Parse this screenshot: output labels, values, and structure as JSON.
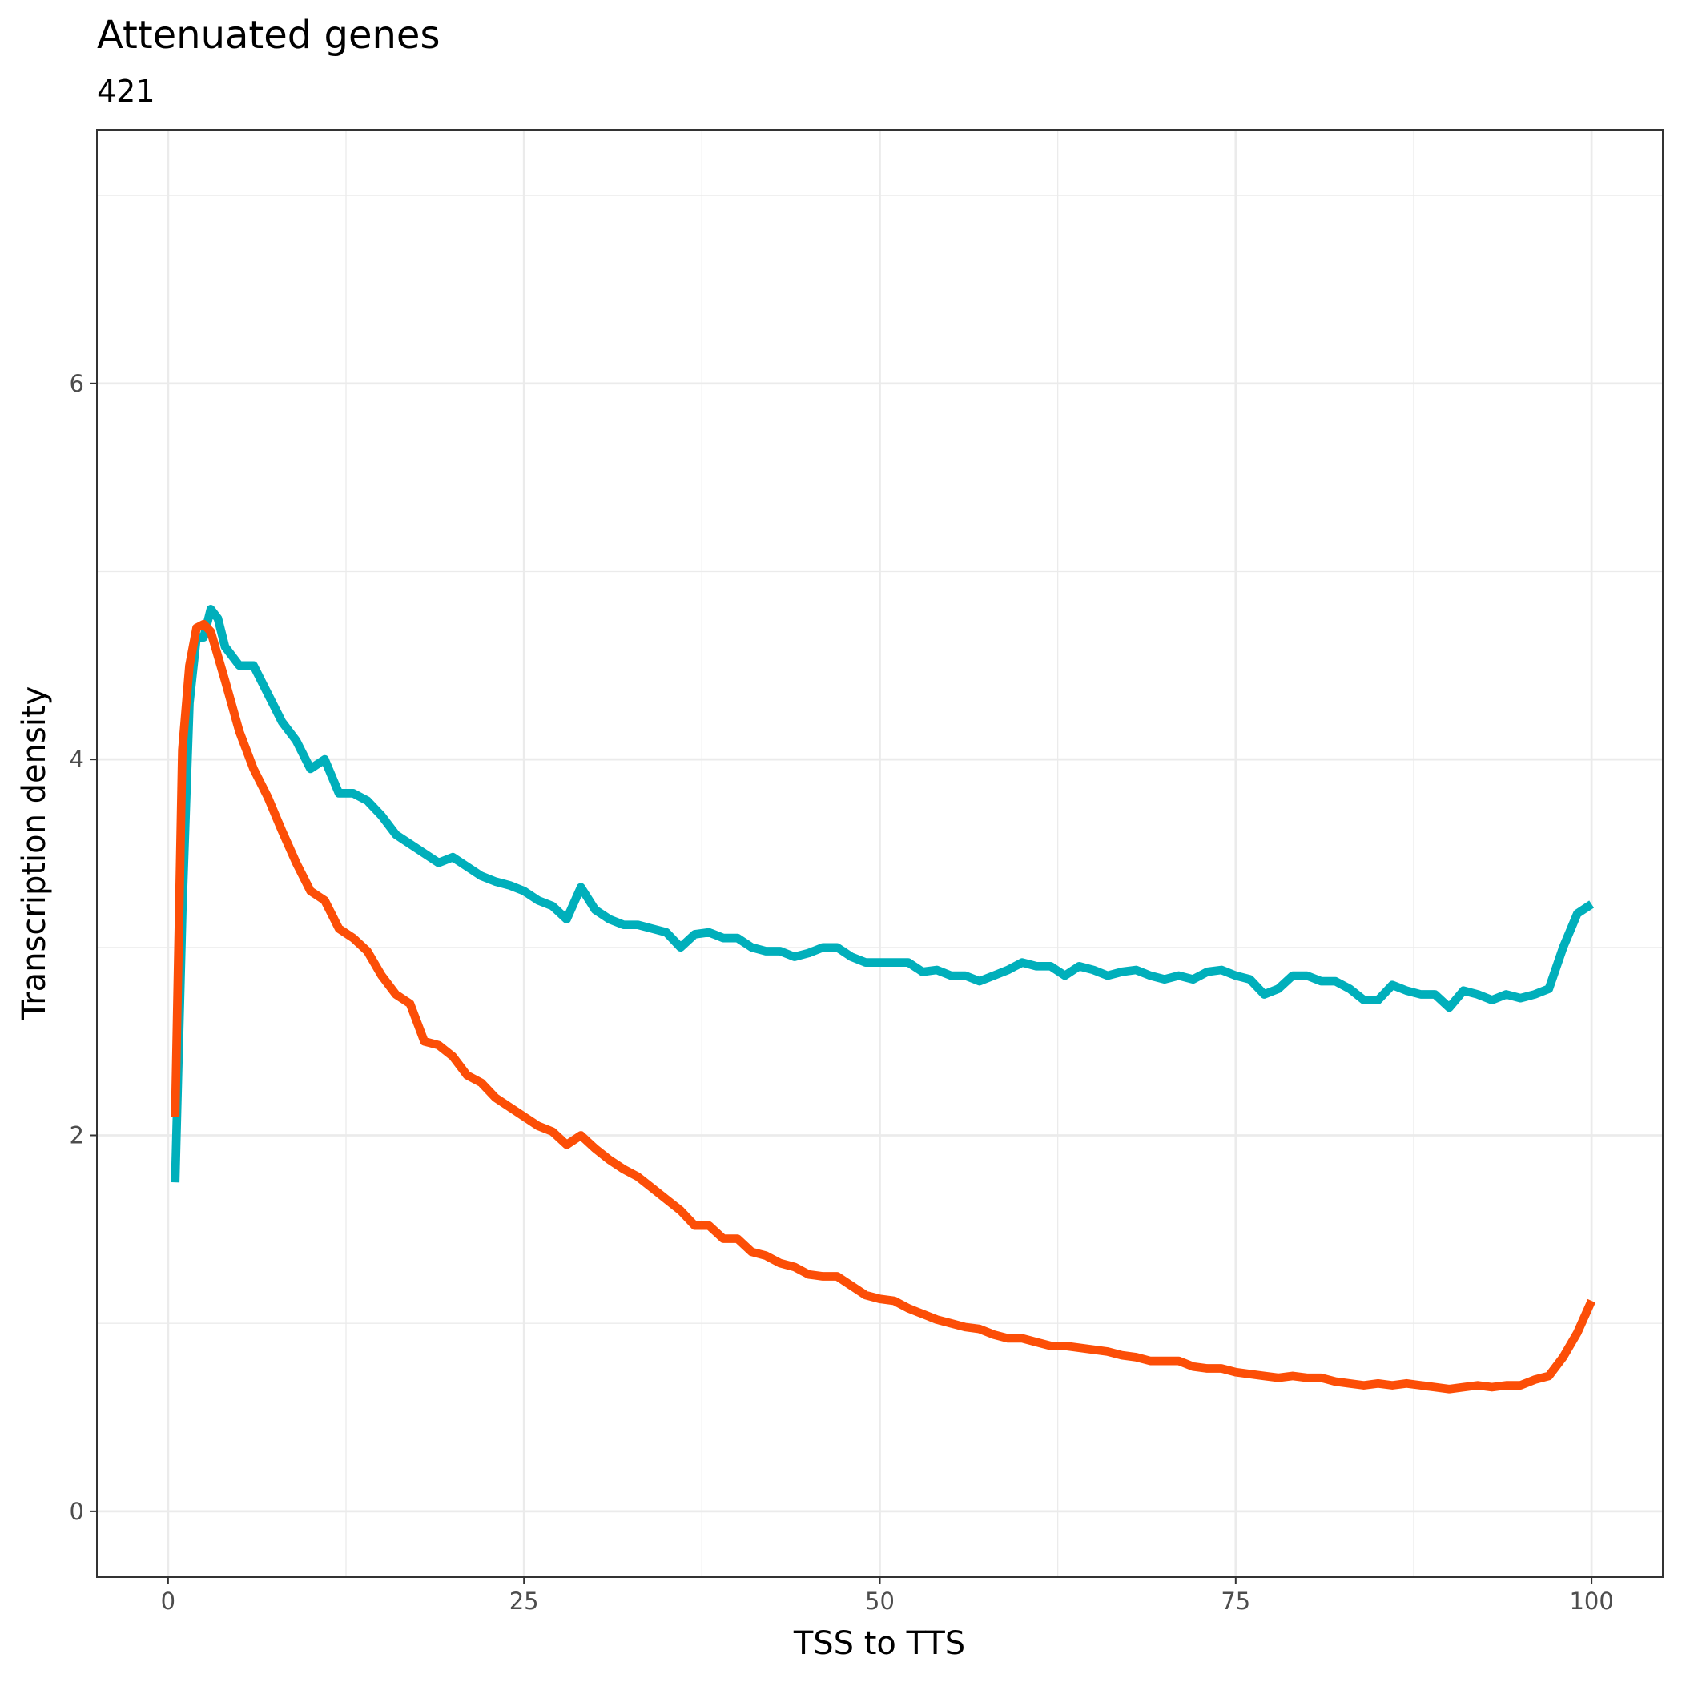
{
  "chart_data": {
    "type": "line",
    "title": "Attenuated genes",
    "subtitle": "421",
    "x_label": "TSS to TTS",
    "y_label": "Transcription density",
    "x": [
      0.5,
      1,
      1.5,
      2,
      2.5,
      3,
      3.5,
      4,
      5,
      6,
      7,
      8,
      9,
      10,
      11,
      12,
      13,
      14,
      15,
      16,
      17,
      18,
      19,
      20,
      21,
      22,
      23,
      24,
      25,
      26,
      27,
      28,
      29,
      30,
      31,
      32,
      33,
      34,
      35,
      36,
      37,
      38,
      39,
      40,
      41,
      42,
      43,
      44,
      45,
      46,
      47,
      48,
      49,
      50,
      51,
      52,
      53,
      54,
      55,
      56,
      57,
      58,
      59,
      60,
      61,
      62,
      63,
      64,
      65,
      66,
      67,
      68,
      69,
      70,
      71,
      72,
      73,
      74,
      75,
      76,
      77,
      78,
      79,
      80,
      81,
      82,
      83,
      84,
      85,
      86,
      87,
      88,
      89,
      90,
      91,
      92,
      93,
      94,
      95,
      96,
      97,
      98,
      99,
      100
    ],
    "series": [
      {
        "color": "#00AFBB",
        "values": [
          1.75,
          3.2,
          4.3,
          4.65,
          4.65,
          4.8,
          4.75,
          4.6,
          4.5,
          4.5,
          4.35,
          4.2,
          4.1,
          3.95,
          4.0,
          3.82,
          3.82,
          3.78,
          3.7,
          3.6,
          3.55,
          3.5,
          3.45,
          3.48,
          3.43,
          3.38,
          3.35,
          3.33,
          3.3,
          3.25,
          3.22,
          3.15,
          3.32,
          3.2,
          3.15,
          3.12,
          3.12,
          3.1,
          3.08,
          3.0,
          3.07,
          3.08,
          3.05,
          3.05,
          3.0,
          2.98,
          2.98,
          2.95,
          2.97,
          3.0,
          3.0,
          2.95,
          2.92,
          2.92,
          2.92,
          2.92,
          2.87,
          2.88,
          2.85,
          2.85,
          2.82,
          2.85,
          2.88,
          2.92,
          2.9,
          2.9,
          2.85,
          2.9,
          2.88,
          2.85,
          2.87,
          2.88,
          2.85,
          2.83,
          2.85,
          2.83,
          2.87,
          2.88,
          2.85,
          2.83,
          2.75,
          2.78,
          2.85,
          2.85,
          2.82,
          2.82,
          2.78,
          2.72,
          2.72,
          2.8,
          2.77,
          2.75,
          2.75,
          2.68,
          2.77,
          2.75,
          2.72,
          2.75,
          2.73,
          2.75,
          2.78,
          3.0,
          3.18,
          3.23
        ]
      },
      {
        "color": "#FC4E07",
        "values": [
          2.1,
          4.05,
          4.5,
          4.7,
          4.72,
          4.68,
          4.55,
          4.42,
          4.15,
          3.95,
          3.8,
          3.62,
          3.45,
          3.3,
          3.25,
          3.1,
          3.05,
          2.98,
          2.85,
          2.75,
          2.7,
          2.5,
          2.48,
          2.42,
          2.32,
          2.28,
          2.2,
          2.15,
          2.1,
          2.05,
          2.02,
          1.95,
          2.0,
          1.93,
          1.87,
          1.82,
          1.78,
          1.72,
          1.66,
          1.6,
          1.52,
          1.52,
          1.45,
          1.45,
          1.38,
          1.36,
          1.32,
          1.3,
          1.26,
          1.25,
          1.25,
          1.2,
          1.15,
          1.13,
          1.12,
          1.08,
          1.05,
          1.02,
          1.0,
          0.98,
          0.97,
          0.94,
          0.92,
          0.92,
          0.9,
          0.88,
          0.88,
          0.87,
          0.86,
          0.85,
          0.83,
          0.82,
          0.8,
          0.8,
          0.8,
          0.77,
          0.76,
          0.76,
          0.74,
          0.73,
          0.72,
          0.71,
          0.72,
          0.71,
          0.71,
          0.69,
          0.68,
          0.67,
          0.68,
          0.67,
          0.68,
          0.67,
          0.66,
          0.65,
          0.66,
          0.67,
          0.66,
          0.67,
          0.67,
          0.7,
          0.72,
          0.82,
          0.95,
          1.12
        ]
      }
    ],
    "xlim": [
      -5,
      105
    ],
    "ylim": [
      -0.35,
      7.35
    ],
    "xticks": [
      0,
      25,
      50,
      75,
      100
    ],
    "yticks": [
      0,
      2,
      4,
      6
    ],
    "x_minor_grid": [
      12.5,
      37.5,
      62.5,
      87.5
    ],
    "y_minor_grid": [
      1,
      3,
      5,
      7
    ],
    "grid": true
  }
}
